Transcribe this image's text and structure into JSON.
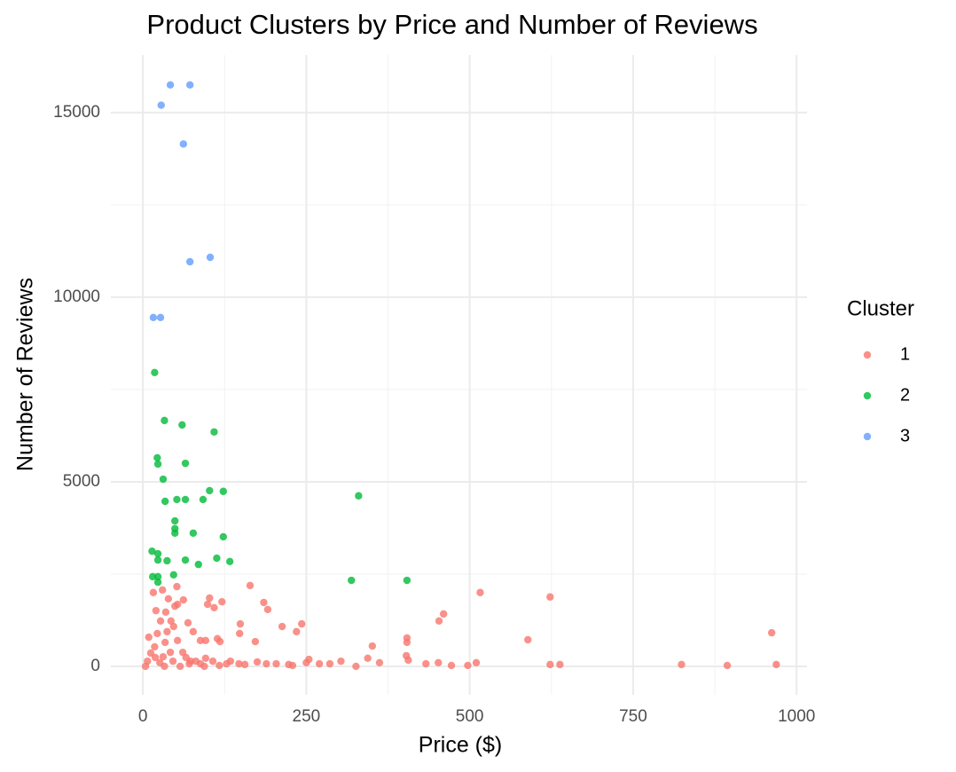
{
  "chart_data": {
    "type": "scatter",
    "title": "Product Clusters by Price and Number of Reviews",
    "x_label": "Price ($)",
    "y_label": "Number of Reviews",
    "legend_title": "Cluster",
    "legend_position": "right",
    "xlim": [
      -49,
      1016
    ],
    "xticks": [
      0,
      250,
      500,
      750,
      1000
    ],
    "x_minor_ticks": [
      125,
      375,
      625,
      875
    ],
    "ylim": [
      -770,
      16560
    ],
    "yticks": [
      0,
      5000,
      10000,
      15000
    ],
    "y_minor_ticks": [
      2500,
      7500,
      12500
    ],
    "grid": true,
    "series": [
      {
        "name": "1",
        "color": "#F8766D",
        "x": [
          516,
          623,
          962,
          589,
          460,
          453,
          164,
          185,
          191,
          213,
          243,
          235,
          172,
          149,
          148,
          404,
          404,
          403,
          406,
          351,
          344,
          362,
          433,
          452,
          472,
          497,
          510,
          623,
          638,
          824,
          894,
          969,
          16,
          30,
          52,
          39,
          62,
          102,
          99,
          121,
          109,
          20,
          35,
          49,
          53,
          27,
          43,
          69,
          9,
          22,
          37,
          47,
          77,
          96,
          114,
          118,
          18,
          34,
          53,
          88,
          12,
          31,
          61,
          96,
          7,
          26,
          46,
          73,
          88,
          107,
          128,
          4,
          134,
          147,
          156,
          175,
          189,
          204,
          223,
          229,
          250,
          254,
          270,
          286,
          303,
          326,
          117,
          81,
          42,
          66,
          19,
          33,
          57,
          71,
          94
        ],
        "values": [
          2000,
          1880,
          910,
          720,
          1420,
          1230,
          2190,
          1730,
          1540,
          1080,
          1150,
          940,
          670,
          1150,
          890,
          770,
          650,
          290,
          170,
          550,
          220,
          100,
          70,
          100,
          25,
          25,
          100,
          50,
          50,
          50,
          25,
          50,
          2000,
          2070,
          2160,
          1830,
          1800,
          1850,
          1680,
          1750,
          1590,
          1510,
          1470,
          1630,
          1680,
          1230,
          1230,
          1180,
          790,
          890,
          940,
          1080,
          940,
          700,
          750,
          670,
          530,
          650,
          700,
          700,
          360,
          260,
          380,
          220,
          140,
          100,
          140,
          140,
          70,
          140,
          70,
          0,
          140,
          70,
          50,
          120,
          70,
          70,
          50,
          25,
          100,
          190,
          70,
          70,
          140,
          0,
          25,
          140,
          380,
          240,
          240,
          0,
          0,
          70,
          0
        ]
      },
      {
        "name": "2",
        "color": "#00BA38",
        "x": [
          18,
          33,
          60,
          109,
          22,
          23,
          65,
          31,
          102,
          123,
          330,
          34,
          52,
          65,
          92,
          49,
          49,
          49,
          77,
          123,
          14,
          23,
          23,
          37,
          65,
          113,
          133,
          85,
          47,
          15,
          23,
          23,
          319,
          404
        ],
        "values": [
          7960,
          6660,
          6540,
          6350,
          5650,
          5480,
          5500,
          5070,
          4760,
          4740,
          4620,
          4470,
          4520,
          4520,
          4520,
          3940,
          3730,
          3610,
          3610,
          3510,
          3120,
          3050,
          2880,
          2860,
          2880,
          2930,
          2840,
          2760,
          2480,
          2430,
          2430,
          2280,
          2330,
          2330
        ]
      },
      {
        "name": "3",
        "color": "#619CFF",
        "x": [
          42,
          72,
          28,
          62,
          72,
          103,
          16,
          27
        ],
        "values": [
          15750,
          15750,
          15200,
          14150,
          10960,
          11080,
          9450,
          9450
        ]
      }
    ]
  }
}
